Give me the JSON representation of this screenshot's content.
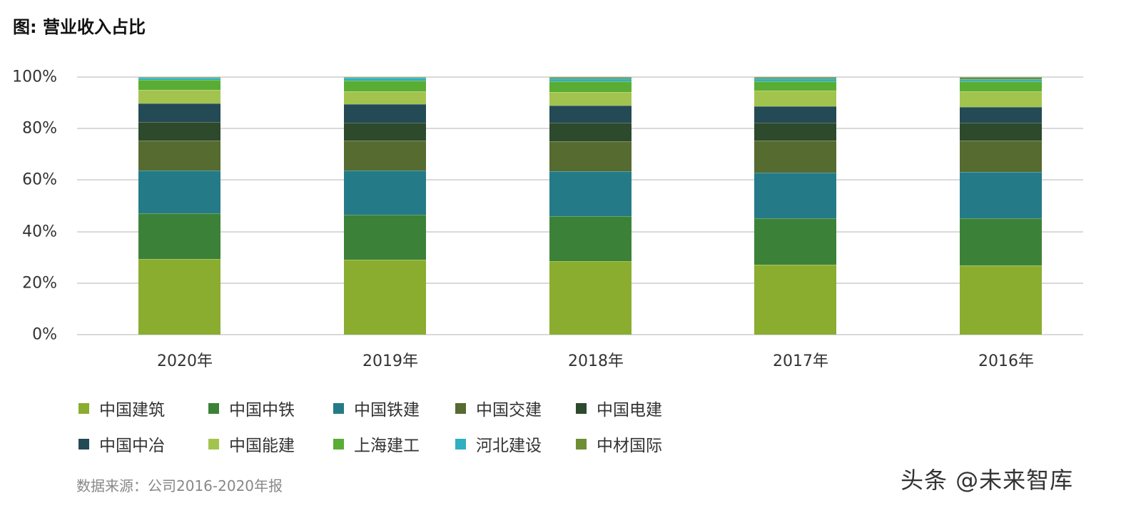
{
  "title": "图: 营业收入占比",
  "source": "数据来源：公司2016-2020年报",
  "watermark": "头条 @未来智库",
  "y_ticks": [
    "100%",
    "80%",
    "60%",
    "40%",
    "20%",
    "0%"
  ],
  "chart_data": {
    "type": "bar",
    "stacked": true,
    "normalized": true,
    "title": "图: 营业收入占比",
    "xlabel": "",
    "ylabel": "",
    "ylim": [
      0,
      100
    ],
    "y_ticks": [
      "0%",
      "20%",
      "40%",
      "60%",
      "80%",
      "100%"
    ],
    "grid": true,
    "legend_position": "bottom",
    "categories": [
      "2020年",
      "2019年",
      "2018年",
      "2017年",
      "2016年"
    ],
    "series": [
      {
        "name": "中国建筑",
        "color": "#8aad30",
        "values": [
          29.4,
          29.1,
          28.5,
          27.1,
          26.9
        ]
      },
      {
        "name": "中国中铁",
        "color": "#3b8238",
        "values": [
          17.7,
          17.5,
          17.5,
          18.0,
          18.3
        ]
      },
      {
        "name": "中国铁建",
        "color": "#247b87",
        "values": [
          16.6,
          17.2,
          17.5,
          17.7,
          18.0
        ]
      },
      {
        "name": "中国交建",
        "color": "#556b30",
        "values": [
          11.6,
          11.6,
          11.6,
          12.5,
          12.2
        ]
      },
      {
        "name": "中国电建",
        "color": "#2d4a2c",
        "values": [
          7.2,
          6.9,
          7.2,
          6.9,
          6.9
        ]
      },
      {
        "name": "中国中冶",
        "color": "#244a55",
        "values": [
          7.2,
          7.2,
          6.6,
          6.4,
          6.1
        ]
      },
      {
        "name": "中国能建",
        "color": "#a2c44e",
        "values": [
          5.3,
          5.0,
          5.3,
          6.1,
          6.1
        ]
      },
      {
        "name": "上海建工",
        "color": "#5aad34",
        "values": [
          3.9,
          4.2,
          4.2,
          3.6,
          3.9
        ]
      },
      {
        "name": "河北建设",
        "color": "#2fb0c0",
        "values": [
          0.8,
          1.1,
          1.0,
          1.1,
          0.8
        ]
      },
      {
        "name": "中材国际",
        "color": "#6e8f36",
        "values": [
          0.3,
          0.2,
          0.6,
          0.6,
          0.8
        ]
      }
    ]
  }
}
